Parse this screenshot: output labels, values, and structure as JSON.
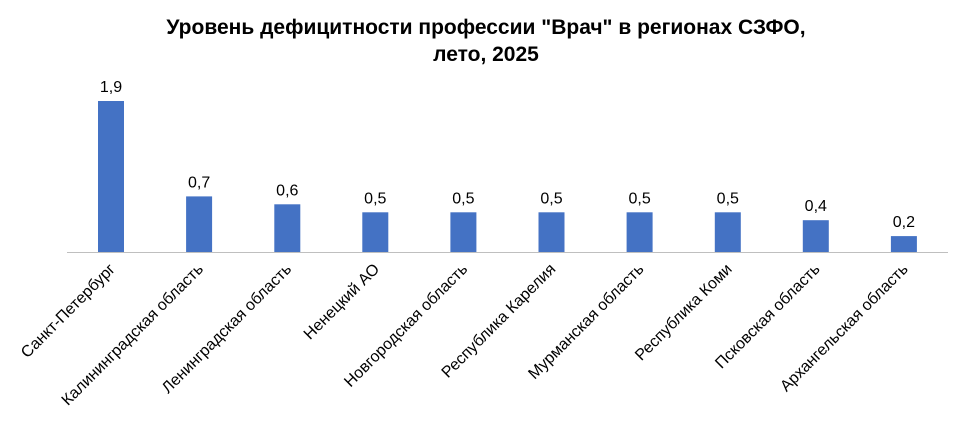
{
  "chart_data": {
    "type": "bar",
    "title_lines": [
      "Уровень дефицитности профессии \"Врач\" в регионах СЗФО,",
      "лето, 2025"
    ],
    "categories": [
      "Санкт-Петербург",
      "Калининградская область",
      "Ленинградская область",
      "Ненецкий АО",
      "Новгородская область",
      "Республика Карелия",
      "Мурманская область",
      "Республика Коми",
      "Псковская область",
      "Архангельская область"
    ],
    "values": [
      1.9,
      0.7,
      0.6,
      0.5,
      0.5,
      0.5,
      0.5,
      0.5,
      0.4,
      0.2
    ],
    "value_labels": [
      "1,9",
      "0,7",
      "0,6",
      "0,5",
      "0,5",
      "0,5",
      "0,5",
      "0,5",
      "0,4",
      "0,2"
    ],
    "xlabel": "",
    "ylabel": "",
    "ylim": [
      0,
      1.9
    ],
    "grid": false,
    "legend": "none",
    "bar_color": "#4472C4",
    "axis_color": "#BFBFBF"
  }
}
